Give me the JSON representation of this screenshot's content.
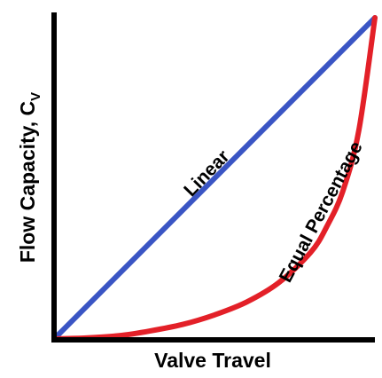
{
  "chart_data": {
    "type": "line",
    "xlabel": "Valve Travel",
    "ylabel": "Flow Capacity, C",
    "ylabel_subscript": "V",
    "xlim": [
      0,
      1
    ],
    "ylim": [
      0,
      1
    ],
    "grid": false,
    "ticks": false,
    "series": [
      {
        "name": "Linear",
        "color": "#3a55c4",
        "x": [
          0,
          1
        ],
        "y": [
          0,
          1
        ]
      },
      {
        "name": "Equal Percentage",
        "color": "#e32028",
        "x": [
          0,
          0.1,
          0.2,
          0.3,
          0.4,
          0.5,
          0.6,
          0.7,
          0.8,
          0.85,
          0.9,
          0.95,
          1.0
        ],
        "y": [
          0,
          0.003,
          0.01,
          0.025,
          0.045,
          0.075,
          0.115,
          0.175,
          0.27,
          0.35,
          0.46,
          0.65,
          1.0
        ]
      }
    ],
    "colors": {
      "axis": "#000000",
      "linear": "#3a55c4",
      "equal_percentage": "#e32028"
    }
  }
}
